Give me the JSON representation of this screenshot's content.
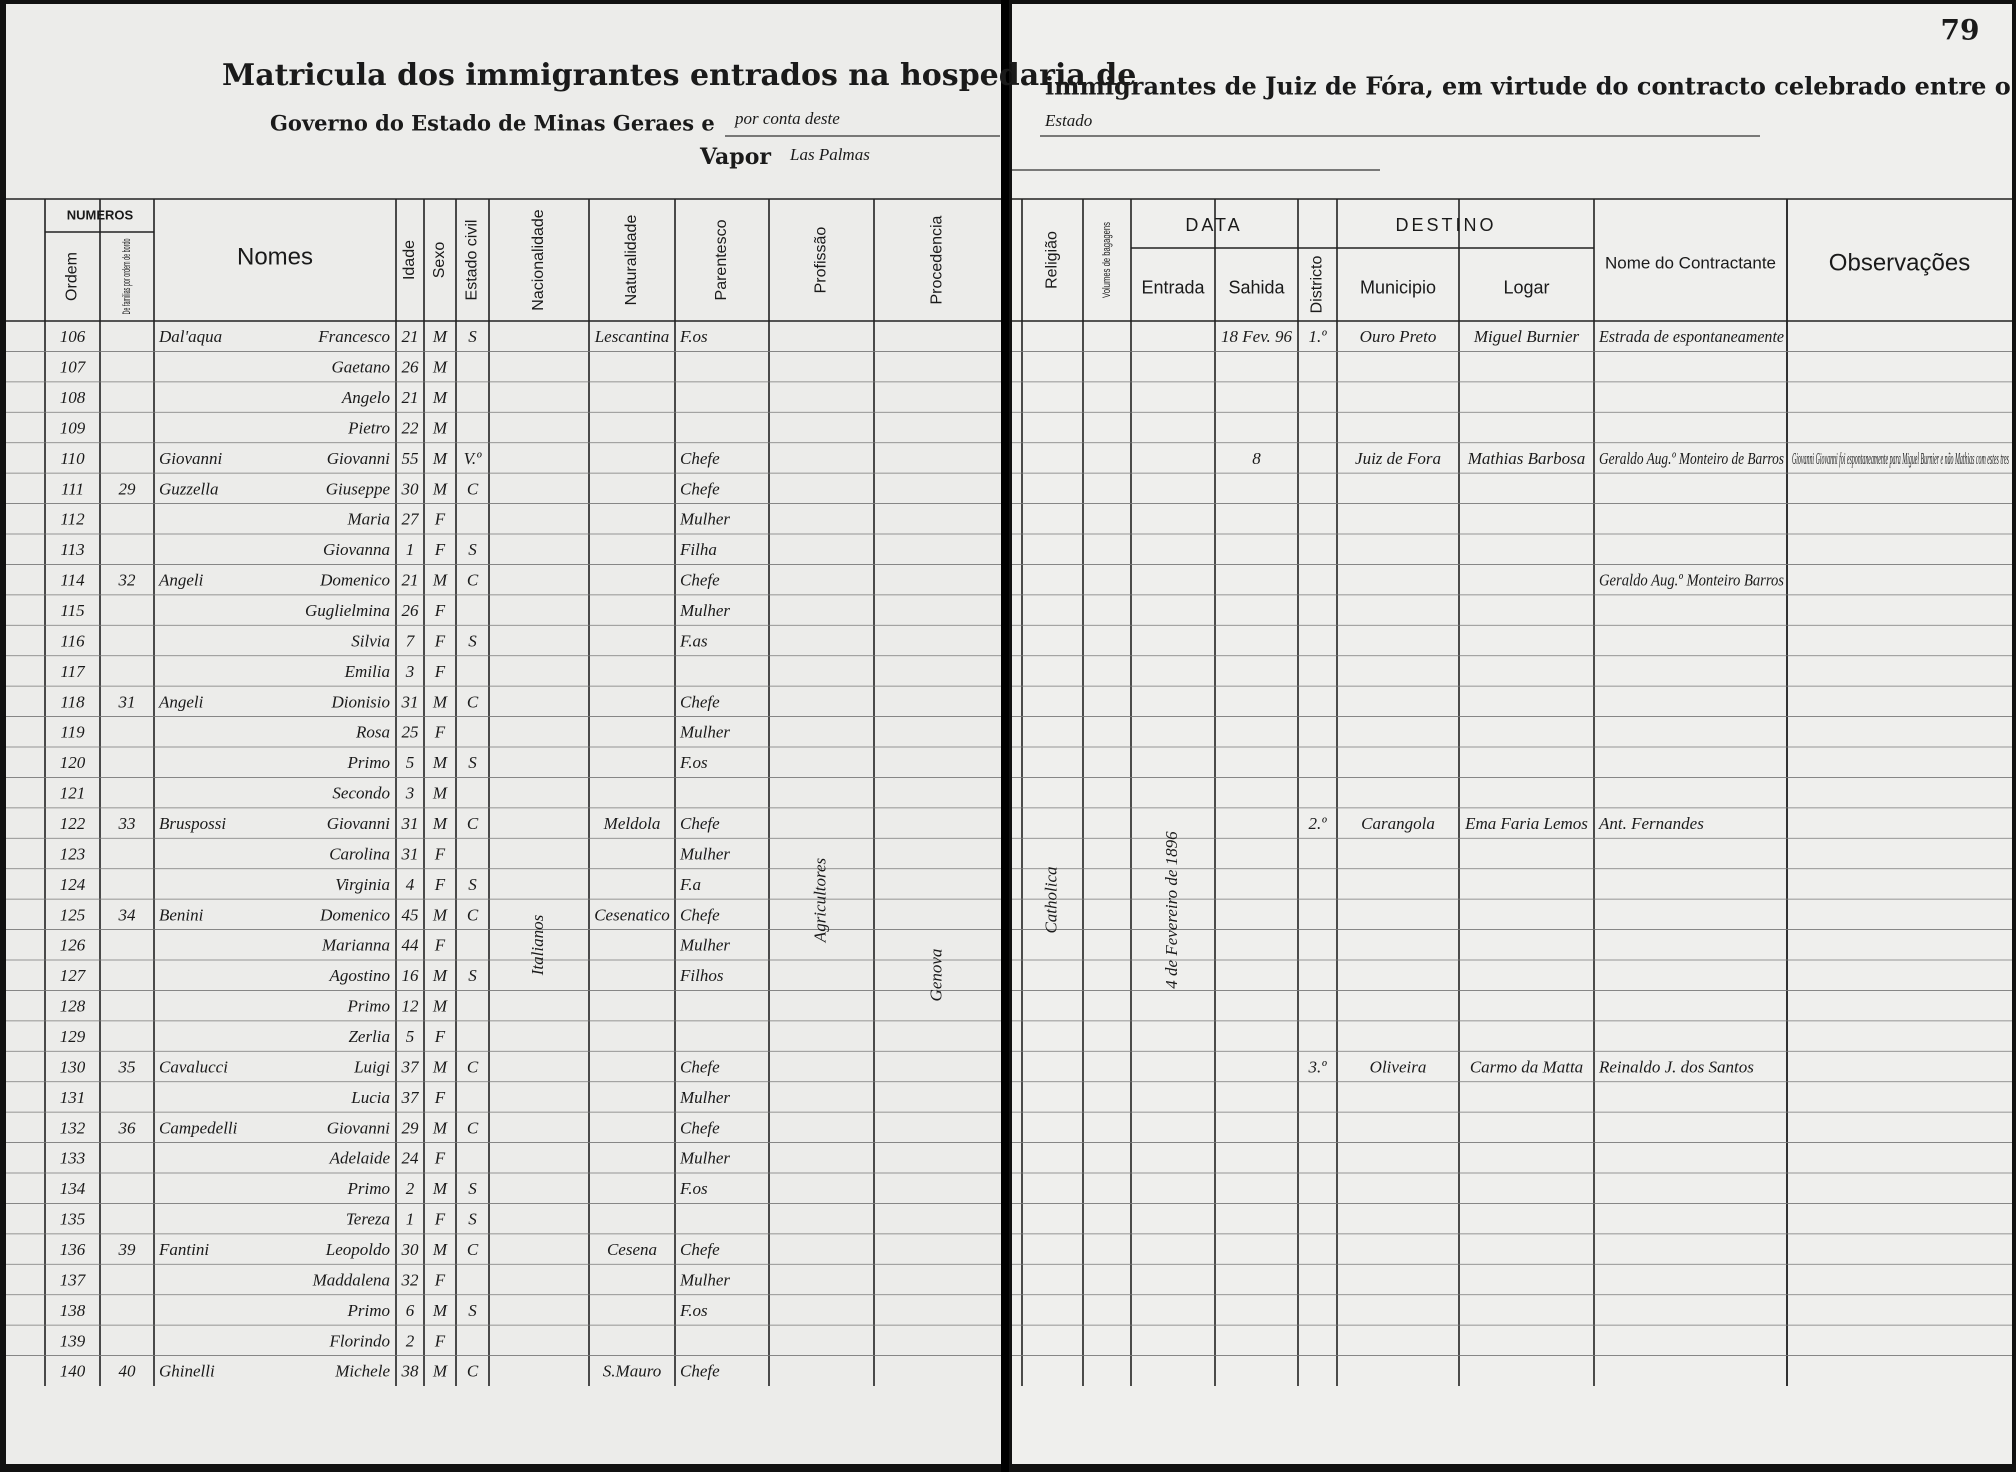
{
  "header": {
    "title_left": "Matricula dos immigrantes entrados na hospedaria de",
    "title_right": "immigrantes de Juiz de Fóra, em virtude do contracto celebrado entre o",
    "line2_left": "Governo do Estado de Minas Geraes e",
    "line2_hand": "por conta deste",
    "line2_right": "Estado",
    "vapor": "Vapor",
    "ship": "Las Palmas",
    "page_number": "79"
  },
  "columns": {
    "numeros": "NUMEROS",
    "ordem": "Ordem",
    "familia": "De familias por ordem de bordo",
    "nomes": "Nomes",
    "idade": "Idade",
    "sexo": "Sexo",
    "estado_civil": "Estado civil",
    "nacionalidade": "Nacionalidade",
    "naturalidade": "Naturalidade",
    "parentesco": "Parentesco",
    "profissao": "Profissão",
    "procedencia": "Procedencia",
    "religiao": "Religião",
    "volumes": "Volumes de bagagens",
    "data": "DATA",
    "entrada": "Entrada",
    "sahida": "Sahida",
    "destino": "DESTINO",
    "districto": "Districto",
    "municipio": "Municipio",
    "logar": "Logar",
    "contractante": "Nome do Contractante",
    "observacoes": "Observações"
  },
  "annotations": {
    "nacionalidade": "Italianos",
    "profissao": "Agricultores",
    "procedencia": "Genova",
    "religiao": "Catholica",
    "entrada": "4 de Fevereiro de 1896"
  },
  "rows": [
    {
      "ordem": 106,
      "sobrenome": "Dal'aqua",
      "nome": "Francesco",
      "idade": 21,
      "sexo": "M",
      "estado_civil": "S",
      "naturalidade": "Lescantina",
      "parentesco": "F.os",
      "sahida": "18 Fev. 96",
      "districto": "1.º",
      "municipio": "Ouro Preto",
      "logar": "Miguel Burnier",
      "contractante": "Estrada de espontaneamente"
    },
    {
      "ordem": 107,
      "nome": "Gaetano",
      "idade": 26,
      "sexo": "M"
    },
    {
      "ordem": 108,
      "nome": "Angelo",
      "idade": 21,
      "sexo": "M"
    },
    {
      "ordem": 109,
      "nome": "Pietro",
      "idade": 22,
      "sexo": "M"
    },
    {
      "ordem": 110,
      "sobrenome": "Giovanni",
      "nome": "Giovanni",
      "idade": 55,
      "sexo": "M",
      "estado_civil": "V.º",
      "parentesco": "Chefe",
      "sahida": "8",
      "municipio": "Juiz de Fora",
      "logar": "Mathias Barbosa",
      "contractante": "Geraldo Aug.º Monteiro de Barros",
      "observacoes": "Giovanni Giovanni foi espontaneamente para Miguel Burnier e não Mathias com estes tres"
    },
    {
      "ordem": 111,
      "familia": "29",
      "sobrenome": "Guzzella",
      "nome": "Giuseppe",
      "idade": 30,
      "sexo": "M",
      "estado_civil": "C",
      "parentesco": "Chefe"
    },
    {
      "ordem": 112,
      "nome": "Maria",
      "idade": 27,
      "sexo": "F",
      "parentesco": "Mulher"
    },
    {
      "ordem": 113,
      "nome": "Giovanna",
      "idade": 1,
      "sexo": "F",
      "estado_civil": "S",
      "parentesco": "Filha"
    },
    {
      "ordem": 114,
      "familia": "32",
      "sobrenome": "Angeli",
      "nome": "Domenico",
      "idade": 21,
      "sexo": "M",
      "estado_civil": "C",
      "parentesco": "Chefe",
      "contractante": "Geraldo Aug.º Monteiro Barros"
    },
    {
      "ordem": 115,
      "nome": "Guglielmina",
      "idade": 26,
      "sexo": "F",
      "parentesco": "Mulher"
    },
    {
      "ordem": 116,
      "nome": "Silvia",
      "idade": 7,
      "sexo": "F",
      "estado_civil": "S",
      "parentesco": "F.as"
    },
    {
      "ordem": 117,
      "nome": "Emilia",
      "idade": 3,
      "sexo": "F"
    },
    {
      "ordem": 118,
      "familia": "31",
      "sobrenome": "Angeli",
      "nome": "Dionisio",
      "idade": 31,
      "sexo": "M",
      "estado_civil": "C",
      "parentesco": "Chefe"
    },
    {
      "ordem": 119,
      "nome": "Rosa",
      "idade": 25,
      "sexo": "F",
      "parentesco": "Mulher"
    },
    {
      "ordem": 120,
      "nome": "Primo",
      "idade": 5,
      "sexo": "M",
      "estado_civil": "S",
      "parentesco": "F.os"
    },
    {
      "ordem": 121,
      "nome": "Secondo",
      "idade": 3,
      "sexo": "M"
    },
    {
      "ordem": 122,
      "familia": "33",
      "sobrenome": "Bruspossi",
      "nome": "Giovanni",
      "idade": 31,
      "sexo": "M",
      "estado_civil": "C",
      "naturalidade": "Meldola",
      "parentesco": "Chefe",
      "districto": "2.º",
      "municipio": "Carangola",
      "logar": "Ema Faria Lemos",
      "contractante": "Ant. Fernandes"
    },
    {
      "ordem": 123,
      "nome": "Carolina",
      "idade": 31,
      "sexo": "F",
      "parentesco": "Mulher"
    },
    {
      "ordem": 124,
      "nome": "Virginia",
      "idade": 4,
      "sexo": "F",
      "estado_civil": "S",
      "parentesco": "F.a"
    },
    {
      "ordem": 125,
      "familia": "34",
      "sobrenome": "Benini",
      "nome": "Domenico",
      "idade": 45,
      "sexo": "M",
      "estado_civil": "C",
      "naturalidade": "Cesenatico",
      "parentesco": "Chefe"
    },
    {
      "ordem": 126,
      "nome": "Marianna",
      "idade": 44,
      "sexo": "F",
      "parentesco": "Mulher"
    },
    {
      "ordem": 127,
      "nome": "Agostino",
      "idade": 16,
      "sexo": "M",
      "estado_civil": "S",
      "parentesco": "Filhos"
    },
    {
      "ordem": 128,
      "nome": "Primo",
      "idade": 12,
      "sexo": "M"
    },
    {
      "ordem": 129,
      "nome": "Zerlia",
      "idade": 5,
      "sexo": "F"
    },
    {
      "ordem": 130,
      "familia": "35",
      "sobrenome": "Cavalucci",
      "nome": "Luigi",
      "idade": 37,
      "sexo": "M",
      "estado_civil": "C",
      "parentesco": "Chefe",
      "districto": "3.º",
      "municipio": "Oliveira",
      "logar": "Carmo da Matta",
      "contractante": "Reinaldo J. dos Santos"
    },
    {
      "ordem": 131,
      "nome": "Lucia",
      "idade": 37,
      "sexo": "F",
      "parentesco": "Mulher"
    },
    {
      "ordem": 132,
      "familia": "36",
      "sobrenome": "Campedelli",
      "nome": "Giovanni",
      "idade": 29,
      "sexo": "M",
      "estado_civil": "C",
      "parentesco": "Chefe"
    },
    {
      "ordem": 133,
      "nome": "Adelaide",
      "idade": 24,
      "sexo": "F",
      "parentesco": "Mulher"
    },
    {
      "ordem": 134,
      "nome": "Primo",
      "idade": 2,
      "sexo": "M",
      "estado_civil": "S",
      "parentesco": "F.os"
    },
    {
      "ordem": 135,
      "nome": "Tereza",
      "idade": 1,
      "sexo": "F",
      "estado_civil": "S"
    },
    {
      "ordem": 136,
      "familia": "39",
      "sobrenome": "Fantini",
      "nome": "Leopoldo",
      "idade": 30,
      "sexo": "M",
      "estado_civil": "C",
      "naturalidade": "Cesena",
      "parentesco": "Chefe"
    },
    {
      "ordem": 137,
      "nome": "Maddalena",
      "idade": 32,
      "sexo": "F",
      "parentesco": "Mulher"
    },
    {
      "ordem": 138,
      "nome": "Primo",
      "idade": 6,
      "sexo": "M",
      "estado_civil": "S",
      "parentesco": "F.os"
    },
    {
      "ordem": 139,
      "nome": "Florindo",
      "idade": 2,
      "sexo": "F"
    },
    {
      "ordem": 140,
      "familia": "40",
      "sobrenome": "Ghinelli",
      "nome": "Michele",
      "idade": 38,
      "sexo": "M",
      "estado_civil": "C",
      "naturalidade": "S.Mauro",
      "parentesco": "Chefe"
    }
  ]
}
